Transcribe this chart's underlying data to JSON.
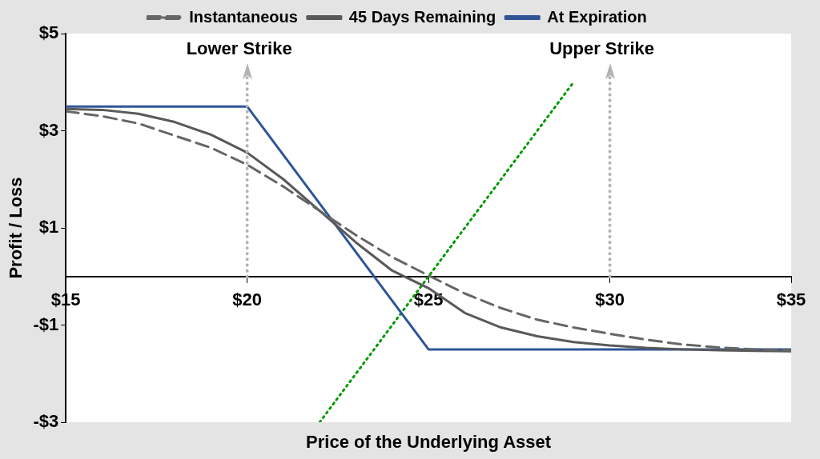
{
  "chart_data": {
    "type": "line",
    "xlabel": "Price of the Underlying Asset",
    "ylabel": "Profit / Loss",
    "xlim": [
      15,
      35
    ],
    "xticks": [
      {
        "value": 15,
        "label": "$15"
      },
      {
        "value": 20,
        "label": "$20"
      },
      {
        "value": 25,
        "label": "$25"
      },
      {
        "value": 30,
        "label": "$30"
      },
      {
        "value": 35,
        "label": "$35"
      }
    ],
    "ylim": [
      -3,
      5
    ],
    "yticks": [
      {
        "value": -3,
        "label": "-$3"
      },
      {
        "value": -1,
        "label": "-$1"
      },
      {
        "value": 1,
        "label": "$1"
      },
      {
        "value": 3,
        "label": "$3"
      },
      {
        "value": 5,
        "label": "$5"
      }
    ],
    "grid": false,
    "legend": "top",
    "marker": "none",
    "series": [
      {
        "name": "Instantaneous",
        "color": "#666666",
        "line_style": "dashed",
        "x": [
          15,
          16,
          17,
          18,
          19,
          20,
          21,
          22,
          23,
          24,
          25,
          26,
          27,
          28,
          29,
          30,
          31,
          32,
          33,
          34,
          35
        ],
        "values": [
          3.4,
          3.3,
          3.15,
          2.9,
          2.65,
          2.3,
          1.85,
          1.35,
          0.85,
          0.4,
          0.02,
          -0.35,
          -0.65,
          -0.89,
          -1.05,
          -1.18,
          -1.3,
          -1.4,
          -1.46,
          -1.5,
          -1.52
        ]
      },
      {
        "name": "45 Days Remaining",
        "color": "#595959",
        "line_style": "solid",
        "x": [
          15,
          16,
          17,
          18,
          19,
          20,
          21,
          22,
          23,
          24,
          25,
          26,
          27,
          28,
          29,
          30,
          31,
          32,
          33,
          34,
          35
        ],
        "values": [
          3.45,
          3.43,
          3.35,
          3.18,
          2.92,
          2.55,
          2.0,
          1.35,
          0.7,
          0.12,
          -0.24,
          -0.75,
          -1.05,
          -1.23,
          -1.35,
          -1.42,
          -1.47,
          -1.5,
          -1.52,
          -1.53,
          -1.54
        ]
      },
      {
        "name": "At Expiration",
        "color": "#2f5597",
        "line_style": "solid",
        "x": [
          15,
          20,
          25,
          35
        ],
        "values": [
          3.5,
          3.5,
          -1.5,
          -1.5
        ]
      },
      {
        "color": "#009900",
        "line_style": "dotted",
        "x": [
          22,
          29
        ],
        "values": [
          -3,
          4
        ]
      }
    ],
    "ref_lines": [
      {
        "axis": "x",
        "value": 20,
        "label": "Lower Strike",
        "color": "#b3b3b3",
        "line_style": "dotted"
      },
      {
        "axis": "x",
        "value": 30,
        "label": "Upper Strike",
        "color": "#b3b3b3",
        "line_style": "dotted"
      }
    ]
  }
}
